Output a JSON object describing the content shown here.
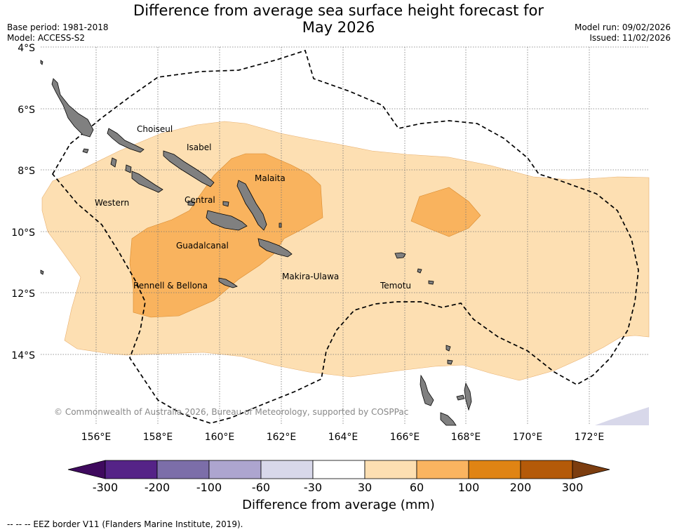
{
  "header": {
    "title_line1": "Difference from average sea surface height forecast for",
    "title_line2": "May 2026",
    "base_period": "Base period: 1981-2018",
    "model": "Model: ACCESS-S2",
    "model_run": "Model run: 09/02/2026",
    "issued": "Issued: 11/02/2026"
  },
  "map": {
    "lat_labels": [
      "4°S",
      "6°S",
      "8°S",
      "10°S",
      "12°S",
      "14°S"
    ],
    "lon_labels": [
      "156°E",
      "158°E",
      "160°E",
      "162°E",
      "164°E",
      "166°E",
      "168°E",
      "170°E",
      "172°E"
    ],
    "region_labels": [
      "Choiseul",
      "Isabel",
      "Malaita",
      "Western",
      "Central",
      "Guadalcanal",
      "Makira-Ulawa",
      "Rennell & Bellona",
      "Temotu"
    ],
    "copyright": "© Commonwealth of Australia 2026, Bureau of Meteorology, supported by COSPPac",
    "land_color": "#808080",
    "eez_line_style": "dashed black"
  },
  "colorbar": {
    "title": "Difference from average (mm)",
    "tick_labels": [
      "-300",
      "-200",
      "-100",
      "-60",
      "-30",
      "30",
      "60",
      "100",
      "200",
      "300"
    ],
    "bins": [
      {
        "color": "#3f0a5e"
      },
      {
        "color": "#552387"
      },
      {
        "color": "#7c6ea9"
      },
      {
        "color": "#ada5cf"
      },
      {
        "color": "#d8d8ea"
      },
      {
        "color": "#ffffff"
      },
      {
        "color": "#fddfb2"
      },
      {
        "color": "#fab460"
      },
      {
        "color": "#e08414"
      },
      {
        "color": "#b45a09"
      },
      {
        "color": "#7c3d0f"
      }
    ]
  },
  "footer": {
    "eez_legend": "--  --  -- EEZ border V11 (Flanders Marine Institute, 2019)."
  }
}
